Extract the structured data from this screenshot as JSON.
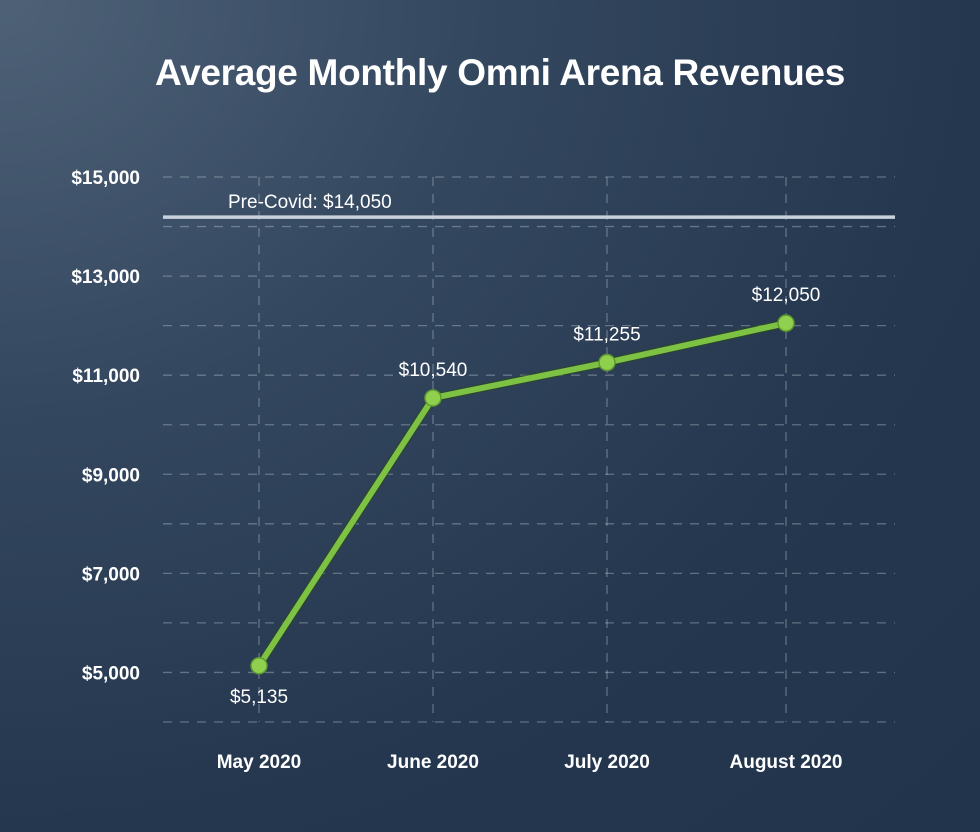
{
  "chart_data": {
    "type": "line",
    "title": "Average Monthly Omni Arena Revenues",
    "xlabel": "",
    "ylabel": "",
    "categories": [
      "May 2020",
      "June 2020",
      "July 2020",
      "August 2020"
    ],
    "values": [
      5135,
      10540,
      11255,
      12050
    ],
    "data_labels": [
      "$5,135",
      "$10,540",
      "$11,255",
      "$12,050"
    ],
    "ylim": [
      4000,
      15000
    ],
    "y_ticks": [
      5000,
      7000,
      9000,
      11000,
      13000,
      15000
    ],
    "y_tick_labels": [
      "$5,000",
      "$7,000",
      "$9,000",
      "$11,000",
      "$13,000",
      "$15,000"
    ],
    "grid": true,
    "reference_line": {
      "value": 14050,
      "label": "Pre-Covid: $14,050",
      "color": "#c9d1dc"
    },
    "line_color": "#7dc242",
    "marker_color": "#8fd14f"
  }
}
